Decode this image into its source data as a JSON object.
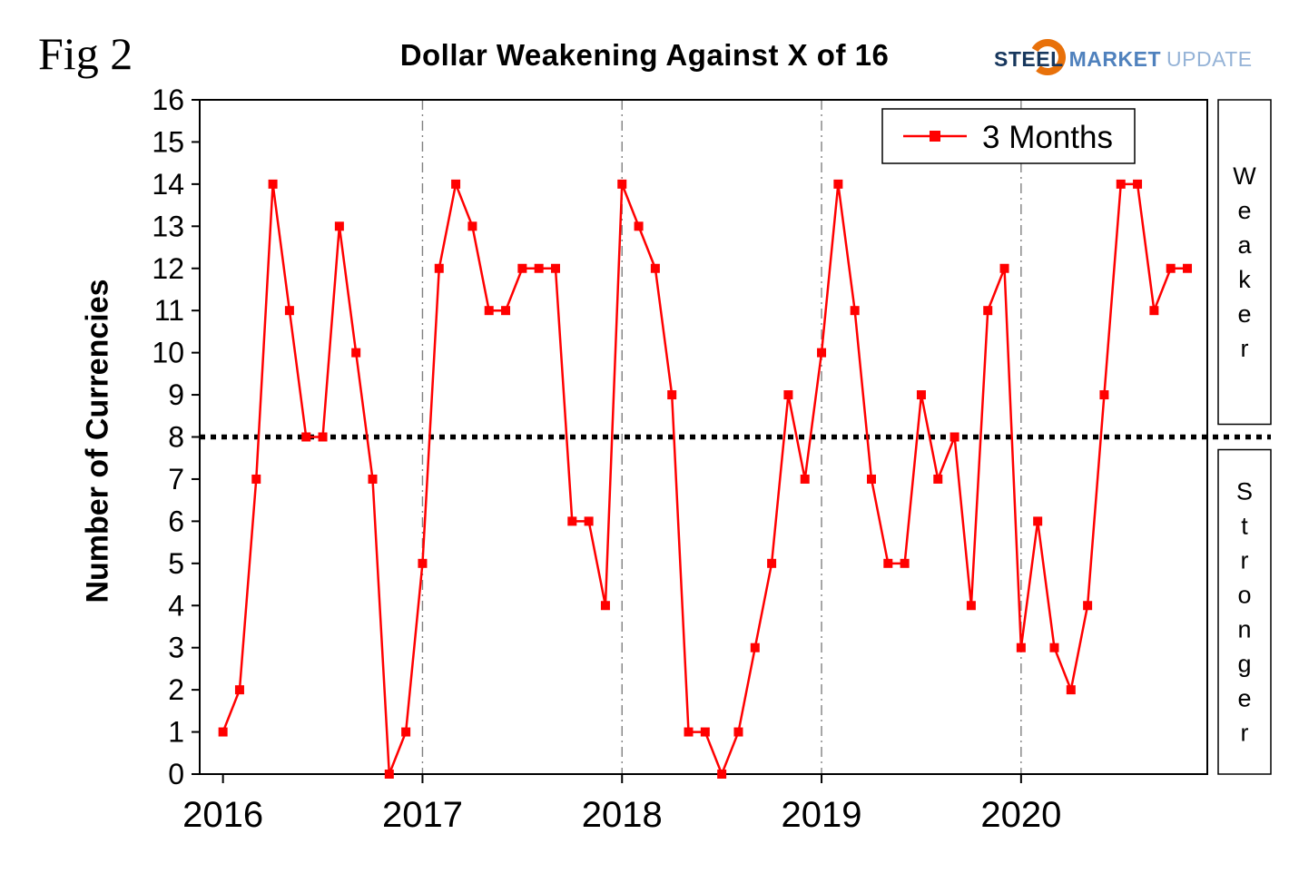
{
  "figure_label": "Fig 2",
  "title": "Dollar Weakening Against X of 16",
  "logo": {
    "steel": "STEEL",
    "market": "MARKET",
    "update": "UPDATE",
    "steel_color": "#17375d",
    "market_color": "#4f81bd",
    "update_color": "#95b3d7",
    "swoosh_color": "#e8710a"
  },
  "chart_data": {
    "type": "line",
    "title": "Dollar Weakening Against X of 16",
    "xlabel": "",
    "ylabel": "Number of Currencies",
    "ylim": [
      0,
      16
    ],
    "yticks": [
      0,
      1,
      2,
      3,
      4,
      5,
      6,
      7,
      8,
      9,
      10,
      11,
      12,
      13,
      14,
      15,
      16
    ],
    "x_year_labels": [
      "2016",
      "2017",
      "2018",
      "2019",
      "2020"
    ],
    "x_interval": "monthly",
    "grid": {
      "vertical_year_lines": true,
      "style": "dash-dot",
      "color": "#808080"
    },
    "legend": {
      "position": "top-right-inside",
      "label": "3 Months"
    },
    "reference_line": {
      "y": 8,
      "style": "dotted",
      "color": "#000000"
    },
    "right_labels": [
      {
        "text": "Weaker",
        "region": "above-reference"
      },
      {
        "text": "Stronger",
        "region": "below-reference"
      }
    ],
    "series": [
      {
        "name": "3 Months",
        "color": "#ff0000",
        "marker": "square",
        "values_by_year": {
          "2016": [
            1,
            2,
            7,
            14,
            11,
            8,
            8,
            13,
            10,
            7,
            0,
            1
          ],
          "2017": [
            5,
            12,
            14,
            13,
            11,
            11,
            12,
            12,
            12,
            6,
            6,
            4
          ],
          "2018": [
            14,
            13,
            12,
            9,
            1,
            1,
            0,
            1,
            3,
            5,
            9,
            7
          ],
          "2019": [
            10,
            14,
            11,
            7,
            5,
            5,
            9,
            7,
            8,
            4,
            11,
            12
          ],
          "2020": [
            3,
            6,
            3,
            2,
            4,
            9,
            14,
            14,
            11,
            12,
            12
          ]
        }
      }
    ]
  }
}
